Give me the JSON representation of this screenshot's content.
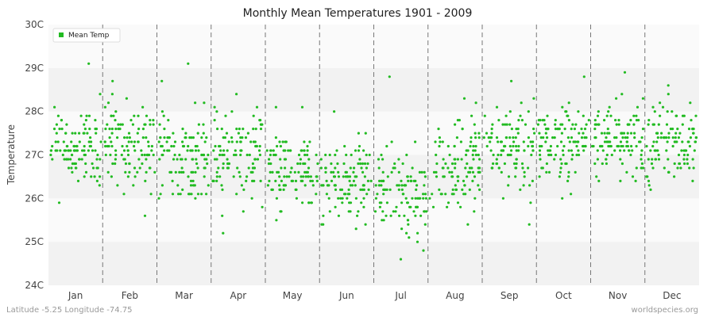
{
  "chart_data": {
    "type": "scatter",
    "title": "Monthly Mean Temperatures 1901 - 2009",
    "ylabel": "Temperature",
    "xlabel": "",
    "ylim": [
      24,
      30
    ],
    "yticks": [
      "24C",
      "25C",
      "26C",
      "27C",
      "28C",
      "29C",
      "30C"
    ],
    "categories": [
      "Jan",
      "Feb",
      "Mar",
      "Apr",
      "May",
      "Jun",
      "Jul",
      "Aug",
      "Sep",
      "Oct",
      "Nov",
      "Dec"
    ],
    "series": [
      {
        "name": "Mean Temp",
        "color": "#22bb22",
        "monthly_summary": [
          {
            "month": "Jan",
            "center": 27.2,
            "spread": 0.45,
            "min": 25.9,
            "max": 29.1
          },
          {
            "month": "Feb",
            "center": 27.2,
            "spread": 0.5,
            "min": 25.6,
            "max": 28.7
          },
          {
            "month": "Mar",
            "center": 27.0,
            "spread": 0.45,
            "min": 26.0,
            "max": 29.1
          },
          {
            "month": "Apr",
            "center": 26.9,
            "spread": 0.5,
            "min": 25.2,
            "max": 28.4
          },
          {
            "month": "May",
            "center": 26.6,
            "spread": 0.45,
            "min": 25.5,
            "max": 28.1
          },
          {
            "month": "Jun",
            "center": 26.4,
            "spread": 0.45,
            "min": 25.3,
            "max": 28.0
          },
          {
            "month": "Jul",
            "center": 26.0,
            "spread": 0.5,
            "min": 24.6,
            "max": 28.8
          },
          {
            "month": "Aug",
            "center": 26.7,
            "spread": 0.55,
            "min": 25.4,
            "max": 28.3
          },
          {
            "month": "Sep",
            "center": 27.2,
            "spread": 0.45,
            "min": 25.4,
            "max": 28.7
          },
          {
            "month": "Oct",
            "center": 27.2,
            "spread": 0.45,
            "min": 26.0,
            "max": 28.8
          },
          {
            "month": "Nov",
            "center": 27.3,
            "spread": 0.45,
            "min": 26.4,
            "max": 28.9
          },
          {
            "month": "Dec",
            "center": 27.2,
            "spread": 0.45,
            "min": 26.2,
            "max": 28.6
          }
        ]
      }
    ],
    "legend": {
      "position": "top-left"
    },
    "grid": {
      "horizontal_bands": true,
      "vertical_dashed": true
    }
  },
  "footer": {
    "left": "Latitude -5.25 Longitude -74.75",
    "right": "worldspecies.org"
  }
}
